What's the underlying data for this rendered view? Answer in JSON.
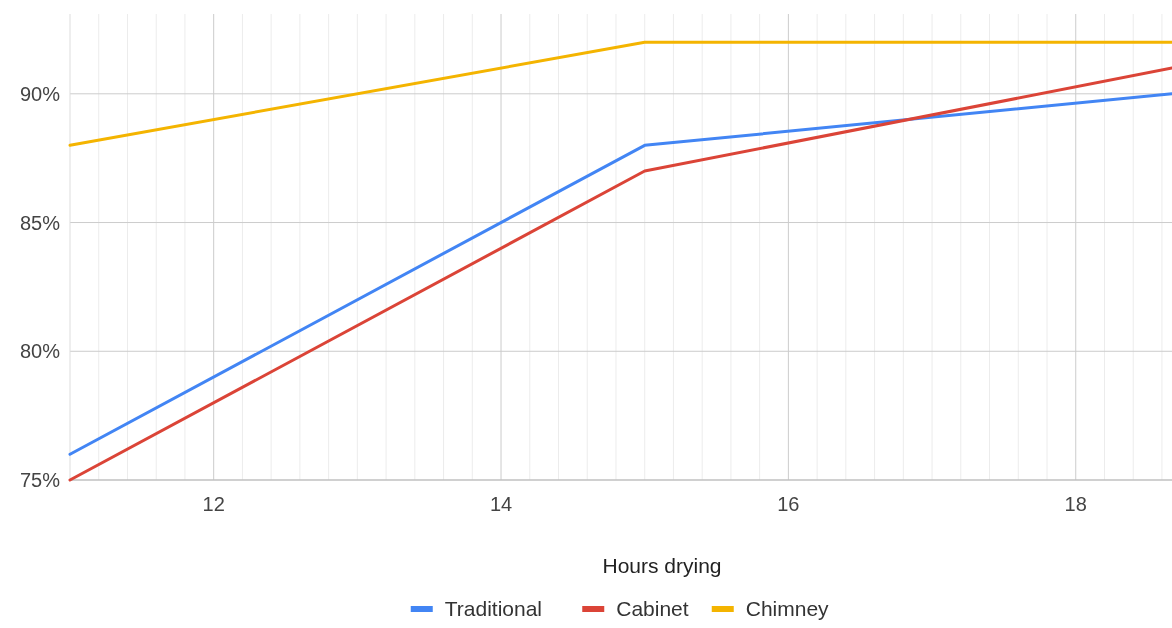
{
  "chart_data": {
    "type": "line",
    "xlabel": "Hours drying",
    "x": [
      11,
      15,
      18.67
    ],
    "series": [
      {
        "name": "Traditional",
        "color": "#4285f4",
        "values": [
          76,
          88,
          90
        ]
      },
      {
        "name": "Cabinet",
        "color": "#db4437",
        "values": [
          75,
          87,
          91
        ]
      },
      {
        "name": "Chimney",
        "color": "#f4b400",
        "values": [
          88,
          92,
          92
        ]
      }
    ],
    "xlim": [
      11,
      18.67
    ],
    "xticks": [
      {
        "value": 11.2,
        "label": null
      },
      {
        "value": 11.4,
        "label": null
      },
      {
        "value": 11.6,
        "label": null
      },
      {
        "value": 11.8,
        "label": null
      },
      12,
      {
        "value": 12.2,
        "label": null
      },
      {
        "value": 12.4,
        "label": null
      },
      {
        "value": 12.6,
        "label": null
      },
      {
        "value": 12.8,
        "label": null
      },
      {
        "value": 13,
        "label": null
      },
      {
        "value": 13.2,
        "label": null
      },
      {
        "value": 13.4,
        "label": null
      },
      {
        "value": 13.6,
        "label": null
      },
      {
        "value": 13.8,
        "label": null
      },
      14,
      {
        "value": 14.2,
        "label": null
      },
      {
        "value": 14.4,
        "label": null
      },
      {
        "value": 14.6,
        "label": null
      },
      {
        "value": 14.8,
        "label": null
      },
      {
        "value": 15,
        "label": null
      },
      {
        "value": 15.2,
        "label": null
      },
      {
        "value": 15.4,
        "label": null
      },
      {
        "value": 15.6,
        "label": null
      },
      {
        "value": 15.8,
        "label": null
      },
      16,
      {
        "value": 16.2,
        "label": null
      },
      {
        "value": 16.4,
        "label": null
      },
      {
        "value": 16.6,
        "label": null
      },
      {
        "value": 16.8,
        "label": null
      },
      {
        "value": 17,
        "label": null
      },
      {
        "value": 17.2,
        "label": null
      },
      {
        "value": 17.4,
        "label": null
      },
      {
        "value": 17.6,
        "label": null
      },
      {
        "value": 17.8,
        "label": null
      },
      18,
      {
        "value": 18.2,
        "label": null
      },
      {
        "value": 18.4,
        "label": null
      },
      {
        "value": 18.6,
        "label": null
      }
    ],
    "ylim": [
      75,
      93.1
    ],
    "yticks": [
      {
        "value": 75,
        "label": "75%"
      },
      {
        "value": 80,
        "label": "80%"
      },
      {
        "value": 85,
        "label": "85%"
      },
      {
        "value": 90,
        "label": "90%"
      }
    ],
    "grid": true,
    "legend": "bottom",
    "marker": "none",
    "line_style": "solid"
  }
}
